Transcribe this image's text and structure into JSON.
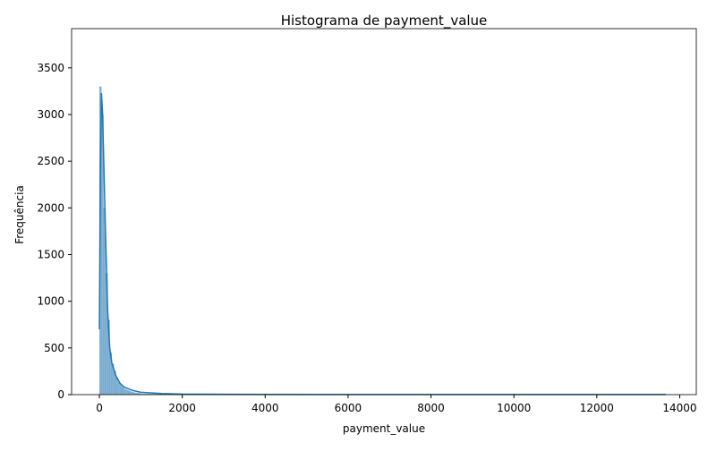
{
  "chart_data": {
    "type": "histogram",
    "title": "Histograma de payment_value",
    "xlabel": "payment_value",
    "ylabel": "Frequência",
    "bins": [
      0,
      50,
      100,
      150,
      200,
      250,
      300,
      350,
      400,
      450,
      500,
      550,
      600,
      650,
      700,
      750,
      800,
      850,
      900,
      950,
      1000,
      2000,
      3000,
      4000,
      5000,
      6000,
      7000,
      8000,
      9000,
      10000,
      11000,
      12000,
      13000,
      13664
    ],
    "values": [
      3300,
      3000,
      2000,
      1300,
      800,
      450,
      330,
      250,
      180,
      130,
      100,
      80,
      60,
      50,
      40,
      32,
      25,
      20,
      17,
      14,
      8,
      4,
      3,
      2,
      2,
      1,
      1,
      1,
      1,
      1,
      1,
      1,
      1
    ],
    "color": "#1f77b4",
    "kde": {
      "x": [
        0,
        25,
        50,
        75,
        100,
        150,
        200,
        250,
        300,
        400,
        500,
        600,
        800,
        1000,
        1500,
        2000,
        4000,
        8000,
        13664
      ],
      "y": [
        700,
        2400,
        3230,
        3030,
        2600,
        1700,
        900,
        500,
        340,
        200,
        120,
        80,
        45,
        25,
        12,
        6,
        2,
        1,
        1
      ]
    },
    "xlim": [
      -670,
      14400
    ],
    "xticks": [
      0,
      2000,
      4000,
      6000,
      8000,
      10000,
      12000,
      14000
    ],
    "ylim": [
      0,
      3920
    ],
    "yticks": [
      0,
      500,
      1000,
      1500,
      2000,
      2500,
      3000,
      3500
    ]
  }
}
